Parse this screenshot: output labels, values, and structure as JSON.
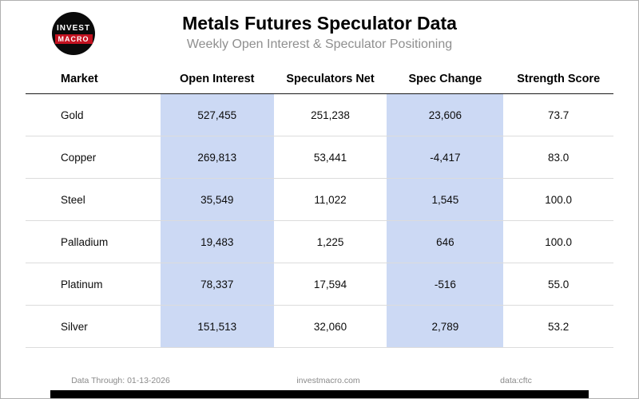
{
  "header": {
    "title": "Metals Futures Speculator Data",
    "subtitle": "Weekly Open Interest & Speculator Positioning",
    "logo_line1": "INVEST",
    "logo_line2": "MACRO"
  },
  "colors": {
    "highlight_band": "#ccd9f4",
    "logo_red": "#c31220"
  },
  "chart_data": {
    "type": "table",
    "title": "Metals Futures Speculator Data",
    "subtitle": "Weekly Open Interest & Speculator Positioning",
    "columns": [
      "Market",
      "Open Interest",
      "Speculators Net",
      "Spec Change",
      "Strength Score"
    ],
    "highlighted_columns": [
      "Open Interest",
      "Spec Change"
    ],
    "rows": [
      [
        "Gold",
        "527,455",
        "251,238",
        "23,606",
        "73.7"
      ],
      [
        "Copper",
        "269,813",
        "53,441",
        "-4,417",
        "83.0"
      ],
      [
        "Steel",
        "35,549",
        "11,022",
        "1,545",
        "100.0"
      ],
      [
        "Palladium",
        "19,483",
        "1,225",
        "646",
        "100.0"
      ],
      [
        "Platinum",
        "78,337",
        "17,594",
        "-516",
        "55.0"
      ],
      [
        "Silver",
        "151,513",
        "32,060",
        "2,789",
        "53.2"
      ]
    ]
  },
  "footer": {
    "data_through": "Data Through: 01-13-2026",
    "site": "investmacro.com",
    "source": "data:cftc"
  }
}
